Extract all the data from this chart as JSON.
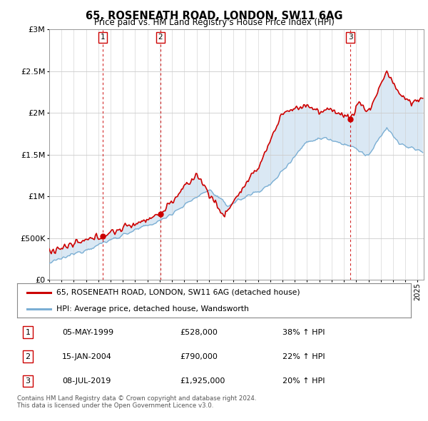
{
  "title": "65, ROSENEATH ROAD, LONDON, SW11 6AG",
  "subtitle": "Price paid vs. HM Land Registry's House Price Index (HPI)",
  "legend_line1": "65, ROSENEATH ROAD, LONDON, SW11 6AG (detached house)",
  "legend_line2": "HPI: Average price, detached house, Wandsworth",
  "footnote": "Contains HM Land Registry data © Crown copyright and database right 2024.\nThis data is licensed under the Open Government Licence v3.0.",
  "transactions": [
    {
      "num": 1,
      "date": "05-MAY-1999",
      "price": "£528,000",
      "hpi": "38% ↑ HPI",
      "year": 1999.35
    },
    {
      "num": 2,
      "date": "15-JAN-2004",
      "price": "£790,000",
      "hpi": "22% ↑ HPI",
      "year": 2004.05
    },
    {
      "num": 3,
      "date": "08-JUL-2019",
      "price": "£1,925,000",
      "hpi": "20% ↑ HPI",
      "year": 2019.52
    }
  ],
  "price_color": "#cc0000",
  "hpi_color": "#7bafd4",
  "shaded_color": "#dae8f4",
  "background_color": "#ffffff",
  "grid_color": "#cccccc",
  "ylim": [
    0,
    3000000
  ],
  "xlim_start": 1995.0,
  "xlim_end": 2025.5,
  "trans_dot_color": "#cc0000"
}
